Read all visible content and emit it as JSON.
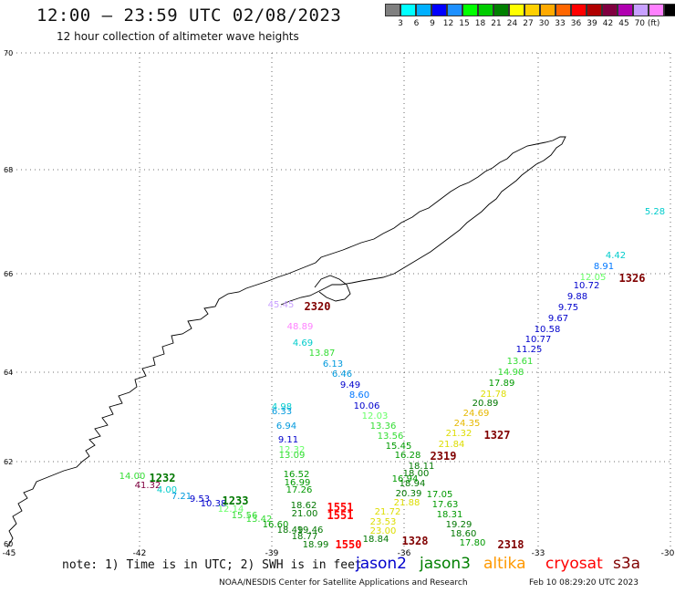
{
  "title": "12:00 – 23:59 UTC 02/08/2023",
  "subtitle": "12 hour collection of altimeter wave heights",
  "scale": {
    "colors": [
      "#808080",
      "#00ffff",
      "#00b0ff",
      "#0000ff",
      "#1e90ff",
      "#00ff00",
      "#00cc00",
      "#008000",
      "#ffff00",
      "#ffd000",
      "#ffaa00",
      "#ff6600",
      "#ff0000",
      "#b00000",
      "#800040",
      "#b000b0",
      "#c8a0ff",
      "#ff80ff",
      "#000000"
    ],
    "labels": [
      "3",
      "6",
      "9",
      "12",
      "15",
      "18",
      "21",
      "24",
      "27",
      "30",
      "33",
      "36",
      "39",
      "42",
      "45",
      "70 (ft)"
    ]
  },
  "axes": {
    "y_labels": [
      "70",
      "68",
      "66",
      "64",
      "62",
      "60"
    ],
    "x_labels": [
      "-45",
      "-42",
      "-39",
      "-36",
      "-33",
      "-30"
    ]
  },
  "values": [
    {
      "t": "5.28",
      "c": "#00cccc"
    },
    {
      "t": "4.42",
      "c": "#00cccc"
    },
    {
      "t": "8.91",
      "c": "#0077ff"
    },
    {
      "t": "12.05",
      "c": "#66ff66"
    },
    {
      "t": "10.72",
      "c": "#0000cc"
    },
    {
      "t": "9.88",
      "c": "#0000cc"
    },
    {
      "t": "9.75",
      "c": "#0000cc"
    },
    {
      "t": "9.67",
      "c": "#0000cc"
    },
    {
      "t": "10.58",
      "c": "#0000cc"
    },
    {
      "t": "10.77",
      "c": "#0000cc"
    },
    {
      "t": "11.25",
      "c": "#0000cc"
    },
    {
      "t": "13.61",
      "c": "#33dd33"
    },
    {
      "t": "14.98",
      "c": "#33dd33"
    },
    {
      "t": "17.89",
      "c": "#009900"
    },
    {
      "t": "21.78",
      "c": "#dddd00"
    },
    {
      "t": "20.89",
      "c": "#007700"
    },
    {
      "t": "24.69",
      "c": "#e6b800"
    },
    {
      "t": "24.35",
      "c": "#e6b800"
    },
    {
      "t": "21.32",
      "c": "#dddd00"
    },
    {
      "t": "21.84",
      "c": "#dddd00"
    },
    {
      "t": "45.45",
      "c": "#c8a0ff"
    },
    {
      "t": "48.89",
      "c": "#ff80ff"
    },
    {
      "t": "4.69",
      "c": "#00cccc"
    },
    {
      "t": "13.87",
      "c": "#33dd33"
    },
    {
      "t": "6.13",
      "c": "#0099dd"
    },
    {
      "t": "6.46",
      "c": "#0099dd"
    },
    {
      "t": "9.49",
      "c": "#0000cc"
    },
    {
      "t": "8.60",
      "c": "#0077ff"
    },
    {
      "t": "10.06",
      "c": "#0000cc"
    },
    {
      "t": "12.03",
      "c": "#66ff66"
    },
    {
      "t": "13.36",
      "c": "#33dd33"
    },
    {
      "t": "13.56",
      "c": "#33dd33"
    },
    {
      "t": "15.45",
      "c": "#009900"
    },
    {
      "t": "16.28",
      "c": "#009900"
    },
    {
      "t": "4.98",
      "c": "#00cccc"
    },
    {
      "t": "6.33",
      "c": "#0099dd"
    },
    {
      "t": "6.94",
      "c": "#0099dd"
    },
    {
      "t": "9.11",
      "c": "#0000cc"
    },
    {
      "t": "12.32",
      "c": "#66ff66"
    },
    {
      "t": "13.09",
      "c": "#33dd33"
    },
    {
      "t": "16.52",
      "c": "#009900"
    },
    {
      "t": "16.99",
      "c": "#009900"
    },
    {
      "t": "17.26",
      "c": "#009900"
    },
    {
      "t": "18.62",
      "c": "#007700"
    },
    {
      "t": "21.00",
      "c": "#007700"
    },
    {
      "t": "13.42",
      "c": "#33dd33"
    },
    {
      "t": "16.60",
      "c": "#009900"
    },
    {
      "t": "18.49",
      "c": "#007700"
    },
    {
      "t": "19.46",
      "c": "#007700"
    },
    {
      "t": "18.77",
      "c": "#007700"
    },
    {
      "t": "18.99",
      "c": "#007700"
    },
    {
      "t": "18.84",
      "c": "#007700"
    },
    {
      "t": "23.00",
      "c": "#dddd00"
    },
    {
      "t": "23.53",
      "c": "#dddd00"
    },
    {
      "t": "21.72",
      "c": "#dddd00"
    },
    {
      "t": "21.88",
      "c": "#dddd00"
    },
    {
      "t": "20.39",
      "c": "#007700"
    },
    {
      "t": "18.94",
      "c": "#007700"
    },
    {
      "t": "17.05",
      "c": "#009900"
    },
    {
      "t": "17.63",
      "c": "#009900"
    },
    {
      "t": "18.31",
      "c": "#009900"
    },
    {
      "t": "19.29",
      "c": "#007700"
    },
    {
      "t": "18.60",
      "c": "#007700"
    },
    {
      "t": "17.80",
      "c": "#009900"
    },
    {
      "t": "14.00",
      "c": "#33dd33"
    },
    {
      "t": "41.32",
      "c": "#800040"
    },
    {
      "t": "4.00",
      "c": "#00cccc"
    },
    {
      "t": "7.21",
      "c": "#0099dd"
    },
    {
      "t": "9.53",
      "c": "#0000cc"
    },
    {
      "t": "10.38",
      "c": "#0000cc"
    },
    {
      "t": "12.14",
      "c": "#66ff66"
    },
    {
      "t": "15.56",
      "c": "#33dd33"
    },
    {
      "t": "16.94",
      "c": "#009900"
    },
    {
      "t": "18.00",
      "c": "#007700"
    },
    {
      "t": "18.11",
      "c": "#007700"
    }
  ],
  "codes": [
    {
      "t": "1326",
      "c": "#800000"
    },
    {
      "t": "2320",
      "c": "#800000"
    },
    {
      "t": "1327",
      "c": "#800000"
    },
    {
      "t": "2319",
      "c": "#800000"
    },
    {
      "t": "1232",
      "c": "#007700"
    },
    {
      "t": "1233",
      "c": "#007700"
    },
    {
      "t": "1551",
      "c": "#ff0000"
    },
    {
      "t": "1551",
      "c": "#ff0000"
    },
    {
      "t": "1550",
      "c": "#ff0000"
    },
    {
      "t": "1328",
      "c": "#800000"
    },
    {
      "t": "2318",
      "c": "#800000"
    }
  ],
  "note": "note: 1) Time is in UTC; 2) SWH is in feet",
  "satellites": [
    {
      "name": "jason2",
      "color": "#0000cc"
    },
    {
      "name": "jason3",
      "color": "#008000"
    },
    {
      "name": "altika",
      "color": "#ff9900"
    },
    {
      "name": "cryosat",
      "color": "#ff0000"
    },
    {
      "name": "s3a",
      "color": "#800000"
    }
  ],
  "footer_left": "NOAA/NESDIS Center for Satellite Applications and Research",
  "footer_right": "Feb 10 08:29:20 UTC 2023"
}
